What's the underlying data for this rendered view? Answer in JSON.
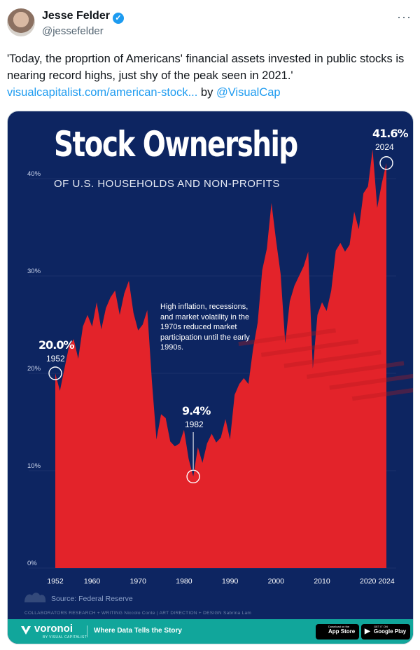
{
  "tweet": {
    "author_name": "Jesse Felder",
    "handle": "@jessefelder",
    "text": "'Today, the proprtion of Americans' financial assets invested in public stocks is nearing record highs, just shy of the peak seen in 2021.'",
    "link_text": "visualcapitalist.com/american-stock...",
    "by_text": " by ",
    "mention": "@VisualCap",
    "more_icon": "more-icon",
    "verified_color": "#1d9bf0"
  },
  "infographic": {
    "title": "Stock Ownership",
    "subtitle": "OF U.S. HOUSEHOLDS AND NON-PROFITS",
    "annotation": "High inflation, recessions, and market volatility in the 1970s reduced market participation until the early 1990s.",
    "callouts": [
      {
        "value": "20.0%",
        "year": "1952"
      },
      {
        "value": "9.4%",
        "year": "1982"
      },
      {
        "value": "41.6%",
        "year": "2024"
      }
    ],
    "source": "Source: Federal Reserve",
    "credits": "COLLABORATORS   RESEARCH + WRITING  Niccolo Conte  |  ART DIRECTION + DESIGN  Sabrina Lam",
    "brand": "voronoi",
    "brand_sub": "BY VISUAL CAPITALIST",
    "tagline": "Where Data Tells the Story",
    "app_store": "App Store",
    "app_store_sub": "Download on the",
    "google_play": "Google Play",
    "google_play_sub": "GET IT ON",
    "colors": {
      "background": "#0d2561",
      "area": "#e8262a",
      "footer": "#11a69b"
    }
  },
  "chart_data": {
    "type": "area",
    "title": "Stock Ownership",
    "subtitle": "OF U.S. HOUSEHOLDS AND NON-PROFITS",
    "xlabel": "",
    "ylabel": "",
    "xlim": [
      1952,
      2024
    ],
    "ylim": [
      0,
      45
    ],
    "x_ticks": [
      "1952",
      "1960",
      "1970",
      "1980",
      "1990",
      "2000",
      "2010",
      "2020",
      "2024"
    ],
    "y_ticks": [
      "0%",
      "10%",
      "20%",
      "30%",
      "40%"
    ],
    "x": [
      1952,
      1953,
      1954,
      1955,
      1956,
      1957,
      1958,
      1959,
      1960,
      1961,
      1962,
      1963,
      1964,
      1965,
      1966,
      1967,
      1968,
      1969,
      1970,
      1971,
      1972,
      1973,
      1974,
      1975,
      1976,
      1977,
      1978,
      1979,
      1980,
      1981,
      1982,
      1983,
      1984,
      1985,
      1986,
      1987,
      1988,
      1989,
      1990,
      1991,
      1992,
      1993,
      1994,
      1995,
      1996,
      1997,
      1998,
      1999,
      2000,
      2001,
      2002,
      2003,
      2004,
      2005,
      2006,
      2007,
      2008,
      2009,
      2010,
      2011,
      2012,
      2013,
      2014,
      2015,
      2016,
      2017,
      2018,
      2019,
      2020,
      2021,
      2022,
      2023,
      2024
    ],
    "values": [
      20.0,
      18.2,
      20.5,
      22.8,
      23.5,
      21.5,
      24.8,
      26.0,
      24.8,
      27.3,
      24.5,
      26.7,
      27.8,
      28.5,
      26.0,
      28.2,
      29.5,
      26.2,
      24.4,
      25.0,
      26.5,
      19.2,
      13.2,
      15.8,
      15.4,
      13.0,
      12.5,
      12.8,
      14.2,
      11.2,
      9.4,
      12.4,
      10.8,
      12.8,
      13.8,
      12.9,
      13.4,
      15.3,
      13.2,
      17.8,
      18.9,
      19.5,
      18.9,
      22.5,
      25.2,
      30.6,
      32.8,
      37.5,
      33.7,
      30.2,
      23.1,
      27.4,
      29.0,
      30.0,
      31.0,
      32.5,
      20.5,
      26.0,
      27.3,
      26.4,
      28.5,
      32.6,
      33.4,
      32.5,
      33.2,
      36.6,
      34.8,
      38.5,
      39.2,
      43.0,
      37.0,
      39.5,
      41.6
    ],
    "annotations": [
      {
        "text": "20.0%",
        "x": 1952,
        "y": 20.0
      },
      {
        "text": "9.4%",
        "x": 1982,
        "y": 9.4
      },
      {
        "text": "41.6%",
        "x": 2024,
        "y": 41.6
      }
    ]
  }
}
